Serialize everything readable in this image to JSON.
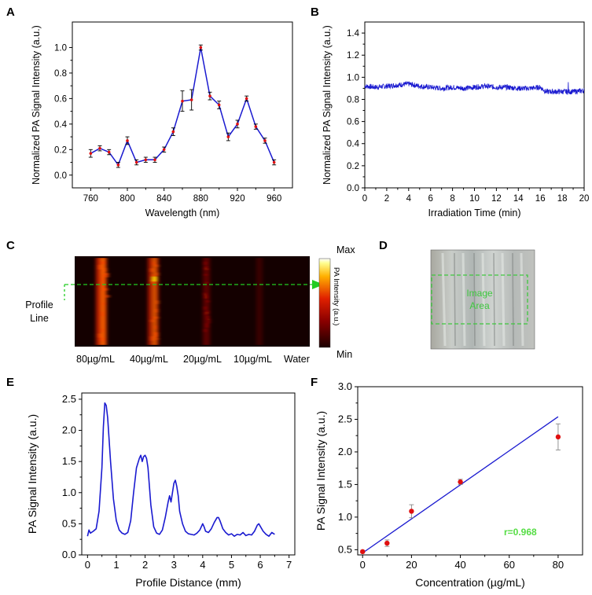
{
  "panels": {
    "A": {
      "label": "A"
    },
    "B": {
      "label": "B"
    },
    "C": {
      "label": "C",
      "colorbar_title": "PA Intensity (a.u.)",
      "colorbar_max": "Max",
      "colorbar_min": "Min",
      "profile_label_1": "Profile",
      "profile_label_2": "Line",
      "samples": [
        "80µg/mL",
        "40µg/mL",
        "20µg/mL",
        "10µg/mL",
        "Water"
      ]
    },
    "D": {
      "label": "D",
      "area_label_1": "Image",
      "area_label_2": "Area"
    },
    "E": {
      "label": "E"
    },
    "F": {
      "label": "F",
      "r_value": "r=0.968"
    }
  },
  "colors": {
    "line": "#1a1ad0",
    "point": "#e01010",
    "errbar": "#000000",
    "profile": "#22cc22",
    "fit": "#1a1ad0"
  },
  "chart_data": [
    {
      "id": "A",
      "type": "line",
      "xlabel": "Wavelength (nm)",
      "ylabel": "Normalized PA Signal Intensity (a.u.)",
      "xlim": [
        740,
        980
      ],
      "ylim": [
        -0.1,
        1.2
      ],
      "xticks": [
        760,
        800,
        840,
        880,
        920,
        960
      ],
      "yticks": [
        0.0,
        0.2,
        0.4,
        0.6,
        0.8,
        1.0
      ],
      "x": [
        760,
        770,
        780,
        790,
        800,
        810,
        820,
        830,
        840,
        850,
        860,
        870,
        880,
        890,
        900,
        910,
        920,
        930,
        940,
        950,
        960
      ],
      "y": [
        0.17,
        0.21,
        0.18,
        0.08,
        0.27,
        0.1,
        0.12,
        0.12,
        0.2,
        0.34,
        0.58,
        0.59,
        1.0,
        0.62,
        0.55,
        0.3,
        0.4,
        0.6,
        0.38,
        0.27,
        0.1
      ],
      "err": [
        0.03,
        0.02,
        0.02,
        0.02,
        0.03,
        0.02,
        0.02,
        0.02,
        0.02,
        0.03,
        0.08,
        0.08,
        0.02,
        0.03,
        0.03,
        0.03,
        0.03,
        0.02,
        0.02,
        0.02,
        0.02
      ]
    },
    {
      "id": "B",
      "type": "line",
      "xlabel": "Irradiation Time (min)",
      "ylabel": "Normalized PA Signal Intensity (a.u.)",
      "xlim": [
        0,
        20
      ],
      "ylim": [
        0,
        1.5
      ],
      "xticks": [
        0,
        2,
        4,
        6,
        8,
        10,
        12,
        14,
        16,
        18,
        20
      ],
      "yticks": [
        0.0,
        0.2,
        0.4,
        0.6,
        0.8,
        1.0,
        1.2,
        1.4
      ],
      "x": [
        0,
        1,
        2,
        3,
        4,
        5,
        6,
        7,
        8,
        9,
        10,
        11,
        12,
        13,
        14,
        15,
        16,
        16.5,
        17,
        18,
        19,
        20
      ],
      "y": [
        0.92,
        0.91,
        0.92,
        0.93,
        0.94,
        0.92,
        0.91,
        0.9,
        0.91,
        0.9,
        0.91,
        0.92,
        0.91,
        0.91,
        0.9,
        0.9,
        0.91,
        0.87,
        0.87,
        0.87,
        0.87,
        0.88
      ],
      "noise": 0.03
    },
    {
      "id": "E",
      "type": "line",
      "xlabel": "Profile Distance (mm)",
      "ylabel": "PA Signal Intensity (a.u.)",
      "xlim": [
        -0.2,
        7.2
      ],
      "ylim": [
        0,
        2.6
      ],
      "xticks": [
        0,
        1,
        2,
        3,
        4,
        5,
        6,
        7
      ],
      "yticks": [
        0.0,
        0.5,
        1.0,
        1.5,
        2.0,
        2.5
      ],
      "x": [
        0.0,
        0.05,
        0.1,
        0.2,
        0.3,
        0.4,
        0.5,
        0.55,
        0.6,
        0.65,
        0.7,
        0.75,
        0.8,
        0.9,
        1.0,
        1.1,
        1.2,
        1.3,
        1.4,
        1.5,
        1.6,
        1.7,
        1.8,
        1.85,
        1.9,
        1.95,
        2.0,
        2.05,
        2.1,
        2.15,
        2.2,
        2.3,
        2.4,
        2.5,
        2.6,
        2.7,
        2.8,
        2.85,
        2.9,
        2.95,
        3.0,
        3.05,
        3.1,
        3.15,
        3.2,
        3.3,
        3.4,
        3.5,
        3.6,
        3.7,
        3.8,
        3.9,
        4.0,
        4.05,
        4.1,
        4.2,
        4.3,
        4.4,
        4.5,
        4.55,
        4.6,
        4.7,
        4.8,
        4.9,
        5.0,
        5.1,
        5.2,
        5.3,
        5.4,
        5.5,
        5.6,
        5.7,
        5.8,
        5.9,
        5.95,
        6.0,
        6.1,
        6.2,
        6.3,
        6.4,
        6.5
      ],
      "y": [
        0.3,
        0.4,
        0.35,
        0.38,
        0.42,
        0.7,
        1.4,
        2.05,
        2.44,
        2.4,
        2.2,
        1.85,
        1.5,
        0.9,
        0.55,
        0.4,
        0.35,
        0.33,
        0.36,
        0.55,
        1.0,
        1.4,
        1.55,
        1.6,
        1.5,
        1.58,
        1.6,
        1.55,
        1.4,
        1.1,
        0.8,
        0.45,
        0.35,
        0.33,
        0.4,
        0.6,
        0.85,
        0.95,
        0.85,
        1.0,
        1.15,
        1.2,
        1.1,
        0.95,
        0.7,
        0.5,
        0.38,
        0.34,
        0.33,
        0.32,
        0.35,
        0.4,
        0.5,
        0.45,
        0.38,
        0.36,
        0.42,
        0.52,
        0.6,
        0.6,
        0.55,
        0.42,
        0.36,
        0.32,
        0.34,
        0.3,
        0.33,
        0.32,
        0.36,
        0.31,
        0.33,
        0.32,
        0.38,
        0.48,
        0.5,
        0.46,
        0.38,
        0.33,
        0.3,
        0.36,
        0.33
      ]
    },
    {
      "id": "F",
      "type": "scatter",
      "xlabel": "Concentration (µg/mL)",
      "ylabel": "PA Signal Intensity (a.u.)",
      "xlim": [
        -2,
        90
      ],
      "ylim": [
        0.42,
        3.0
      ],
      "xticks": [
        0,
        20,
        40,
        60,
        80
      ],
      "yticks": [
        0.5,
        1.0,
        1.5,
        2.0,
        2.5,
        3.0
      ],
      "x": [
        0,
        10,
        20,
        40,
        80
      ],
      "y": [
        0.47,
        0.6,
        1.09,
        1.54,
        2.23
      ],
      "err": [
        0.02,
        0.05,
        0.1,
        0.04,
        0.2
      ],
      "fit": {
        "x": [
          0,
          80
        ],
        "y": [
          0.45,
          2.54
        ]
      }
    }
  ]
}
